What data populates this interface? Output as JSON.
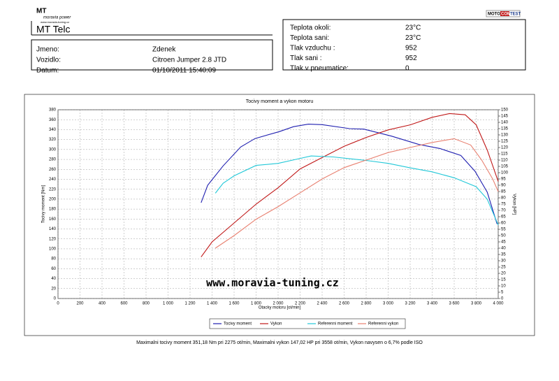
{
  "header": {
    "logo": {
      "brand": "MT",
      "tagline": "moravia power",
      "url": "www.moravia-tuning.cz"
    },
    "title": "MT Telc",
    "badge": [
      "MOTO",
      "COM",
      "TEST"
    ]
  },
  "vehicle_info": [
    {
      "label": "Jmeno:",
      "value": "Zdenek"
    },
    {
      "label": "Vozidlo:",
      "value": "Citroen Jumper 2.8 JTD"
    },
    {
      "label": "Datum:",
      "value": "01/10/2011 15:40:09"
    }
  ],
  "conditions": [
    {
      "label": "Teplota okoli:",
      "value": "23°C"
    },
    {
      "label": "Teplota sani:",
      "value": "23°C"
    },
    {
      "label": "Tlak vzduchu :",
      "value": "952"
    },
    {
      "label": "Tlak sani :",
      "value": "952"
    },
    {
      "label": "Tlak v pneumatice:",
      "value": "0"
    }
  ],
  "chart_data": {
    "type": "line",
    "title": "Tocivy moment a vykon motoru",
    "x_label": "Otacky motoru [ot/min]",
    "y_label": "Tocivy moment [Nm]",
    "y2_label": "Vykon [HP]",
    "watermark": "www.moravia-tuning.cz",
    "grid": true,
    "xlim": [
      0,
      4000
    ],
    "xticks": [
      0,
      200,
      400,
      600,
      800,
      {
        "value": 1000,
        "label": "1 000"
      },
      {
        "value": 1200,
        "label": "1 200"
      },
      {
        "value": 1400,
        "label": "1 400"
      },
      {
        "value": 1600,
        "label": "1 600"
      },
      {
        "value": 1800,
        "label": "1 800"
      },
      {
        "value": 2000,
        "label": "2 000"
      },
      {
        "value": 2200,
        "label": "2 200"
      },
      {
        "value": 2400,
        "label": "2 400"
      },
      {
        "value": 2600,
        "label": "2 600"
      },
      {
        "value": 2800,
        "label": "2 800"
      },
      {
        "value": 3000,
        "label": "3 000"
      },
      {
        "value": 3200,
        "label": "3 200"
      },
      {
        "value": 3400,
        "label": "3 400"
      },
      {
        "value": 3600,
        "label": "3 600"
      },
      {
        "value": 3800,
        "label": "3 800"
      },
      {
        "value": 4000,
        "label": "4 000"
      }
    ],
    "ylim": [
      0,
      380
    ],
    "yticks": [
      0,
      20,
      40,
      60,
      80,
      100,
      120,
      140,
      160,
      180,
      200,
      220,
      240,
      260,
      280,
      300,
      320,
      340,
      360,
      380
    ],
    "y2lim": [
      0,
      150
    ],
    "y2ticks": [
      0,
      5,
      10,
      15,
      20,
      25,
      30,
      35,
      40,
      45,
      50,
      55,
      60,
      65,
      70,
      75,
      80,
      85,
      90,
      95,
      100,
      105,
      110,
      115,
      120,
      125,
      130,
      135,
      140,
      145,
      150
    ],
    "series": [
      {
        "name": "Tocivy moment",
        "color": "#1f1fb0",
        "axis": "y",
        "x": [
          1300,
          1360,
          1500,
          1660,
          1790,
          2010,
          2140,
          2275,
          2400,
          2650,
          2780,
          3030,
          3280,
          3470,
          3660,
          3790,
          3900,
          3990
        ],
        "values": [
          193,
          228,
          267,
          305,
          322,
          336,
          346,
          351,
          350,
          342,
          341,
          327,
          310,
          302,
          288,
          256,
          214,
          150
        ]
      },
      {
        "name": "Vykon",
        "color": "#c01818",
        "axis": "y2",
        "x": [
          1300,
          1400,
          1600,
          1800,
          2000,
          2200,
          2400,
          2600,
          2800,
          3000,
          3200,
          3400,
          3558,
          3700,
          3800,
          3900,
          4000
        ],
        "values": [
          33,
          45,
          60,
          75,
          88,
          103,
          112,
          121,
          128,
          134,
          138,
          144,
          147,
          146,
          138,
          118,
          93
        ]
      },
      {
        "name": "Referenni moment",
        "color": "#22c8d8",
        "axis": "y",
        "x": [
          1430,
          1500,
          1600,
          1800,
          2000,
          2200,
          2300,
          2500,
          2800,
          3000,
          3200,
          3400,
          3600,
          3800,
          3900,
          4000
        ],
        "values": [
          212,
          232,
          247,
          268,
          272,
          282,
          287,
          285,
          278,
          272,
          263,
          255,
          243,
          225,
          200,
          148
        ]
      },
      {
        "name": "Referenni vykon",
        "color": "#e88070",
        "axis": "y2",
        "x": [
          1430,
          1600,
          1800,
          2000,
          2200,
          2400,
          2600,
          2800,
          3000,
          3200,
          3400,
          3600,
          3750,
          3850,
          3950,
          4000
        ],
        "values": [
          40,
          50,
          63,
          73,
          84,
          95,
          104,
          110,
          116,
          120,
          124,
          127,
          122,
          110,
          95,
          85
        ]
      }
    ]
  },
  "summary": "Maximalni tocivy moment 351,18 Nm pri 2275 ot/min,  Maximalni vykon 147,02 HP pri 3558 ot/min,  Vykon navysen o 6,7% podle ISO"
}
